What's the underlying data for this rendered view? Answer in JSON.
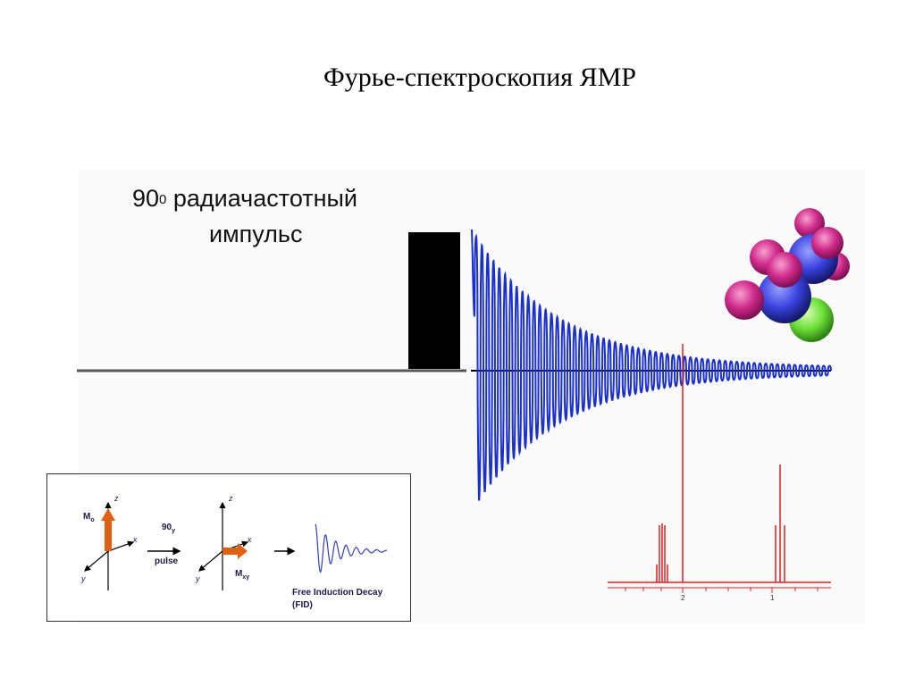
{
  "title": "Фурье-спектроскопия ЯМР",
  "pulse_label": {
    "line1_prefix": "90",
    "degree_sign": "0",
    "line1_rest": " радиачастотный",
    "line2": "импульс"
  },
  "inset": {
    "axis_z": "z",
    "axis_x": "x",
    "axis_y": "y",
    "m0_label": "M",
    "m0_sub": "o",
    "mxy_label": "M",
    "mxy_sub": "xy",
    "pulse_angle": "90",
    "pulse_angle_sub": "y",
    "pulse_word": "pulse",
    "fid_line1": "Free Induction Decay",
    "fid_line2": "(FID)"
  },
  "spectrum_ticks": [
    "2",
    "1"
  ],
  "colors": {
    "fid": "#1a2fd0",
    "spectrum": "#e02020",
    "pulse_block": "#000000",
    "baseline": "#555555",
    "arrow": "#e06010",
    "atom_magenta": "#d02a8a",
    "atom_blue": "#3a42e0",
    "atom_green": "#6ee03a"
  }
}
